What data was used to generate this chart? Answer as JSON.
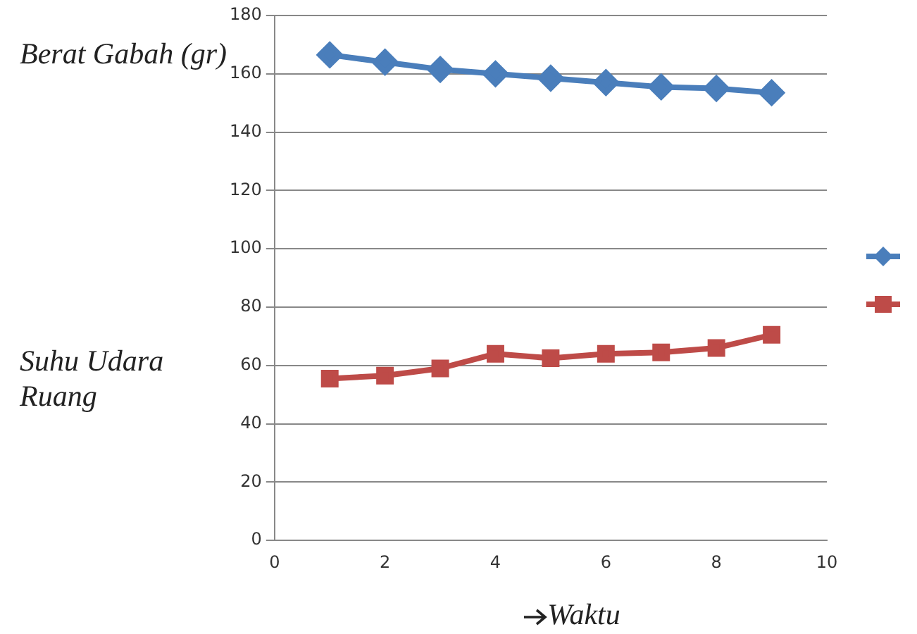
{
  "chart_data": {
    "type": "line",
    "xlabel": "Waktu",
    "x": [
      1,
      2,
      3,
      4,
      5,
      6,
      7,
      8,
      9
    ],
    "series": [
      {
        "color": "#4a7ebb",
        "marker": "diamond",
        "values": [
          166.5,
          164,
          161.5,
          160,
          158.5,
          157,
          155.5,
          155,
          153.5
        ]
      },
      {
        "color": "#be4b48",
        "marker": "square",
        "values": [
          55.5,
          56.5,
          59,
          64,
          62.5,
          64,
          64.5,
          66,
          70.5
        ]
      }
    ],
    "xlim": [
      0,
      10
    ],
    "xticks": [
      0,
      2,
      4,
      6,
      8,
      10
    ],
    "ylim": [
      0,
      180
    ],
    "yticks": [
      0,
      20,
      40,
      60,
      80,
      100,
      120,
      140,
      160,
      180
    ],
    "annotations": [
      "Berat Gabah (gr)",
      "Suhu Udara Ruang"
    ],
    "grid": "y"
  }
}
